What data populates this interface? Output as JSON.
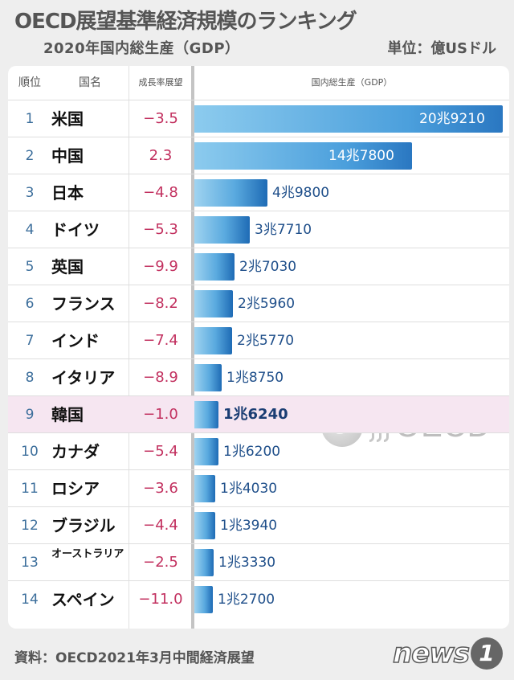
{
  "header": {
    "title": "OECD展望基準経済規模のランキング",
    "subtitle": "2020年国内総生産（GDP）",
    "unit": "単位：億USドル"
  },
  "columns": {
    "rank": "順位",
    "country": "国名",
    "growth": "成長率展望",
    "gdp": "国内総生産（GDP）"
  },
  "chart_data": {
    "type": "bar",
    "title": "OECD展望基準経済規模のランキング",
    "subtitle": "2020年国内総生産（GDP）",
    "unit": "億USドル",
    "categories": [
      "米国",
      "中国",
      "日本",
      "ドイツ",
      "英国",
      "フランス",
      "インド",
      "イタリア",
      "韓国",
      "カナダ",
      "ロシア",
      "ブラジル",
      "オーストラリア",
      "スペイン"
    ],
    "values": [
      209210,
      147800,
      49800,
      37710,
      27030,
      25960,
      25770,
      18750,
      16240,
      16200,
      14030,
      13940,
      13330,
      12700
    ],
    "highlight": "韓国",
    "orientation": "horizontal"
  },
  "rows": [
    {
      "rank": "1",
      "country": "米国",
      "growth": "−3.5",
      "gdp_label": "20兆9210"
    },
    {
      "rank": "2",
      "country": "中国",
      "growth": "2.3",
      "gdp_label": "14兆7800"
    },
    {
      "rank": "3",
      "country": "日本",
      "growth": "−4.8",
      "gdp_label": "4兆9800"
    },
    {
      "rank": "4",
      "country": "ドイツ",
      "growth": "−5.3",
      "gdp_label": "3兆7710"
    },
    {
      "rank": "5",
      "country": "英国",
      "growth": "−9.9",
      "gdp_label": "2兆7030"
    },
    {
      "rank": "6",
      "country": "フランス",
      "growth": "−8.2",
      "gdp_label": "2兆5960"
    },
    {
      "rank": "7",
      "country": "インド",
      "growth": "−7.4",
      "gdp_label": "2兆5770"
    },
    {
      "rank": "8",
      "country": "イタリア",
      "growth": "−8.9",
      "gdp_label": "1兆8750"
    },
    {
      "rank": "9",
      "country": "韓国",
      "growth": "−1.0",
      "gdp_label": "1兆6240"
    },
    {
      "rank": "10",
      "country": "カナダ",
      "growth": "−5.4",
      "gdp_label": "1兆6200"
    },
    {
      "rank": "11",
      "country": "ロシア",
      "growth": "−3.6",
      "gdp_label": "1兆4030"
    },
    {
      "rank": "12",
      "country": "ブラジル",
      "growth": "−4.4",
      "gdp_label": "1兆3940"
    },
    {
      "rank": "13",
      "country": "オーストラリア",
      "growth": "−2.5",
      "gdp_label": "1兆3330"
    },
    {
      "rank": "14",
      "country": "スペイン",
      "growth": "−11.0",
      "gdp_label": "1兆2700"
    }
  ],
  "watermark": {
    "text": "OECD",
    "icon": "oecd-globe-icon"
  },
  "footer": {
    "source": "資料：OECD2021年3月中間経済展望",
    "logo_text": "news",
    "logo_number": "1"
  },
  "colors": {
    "bar": "#4b9fdc",
    "growth": "#c2305f",
    "rank": "#3d6f9c",
    "highlight_row": "#f6e6f1"
  }
}
